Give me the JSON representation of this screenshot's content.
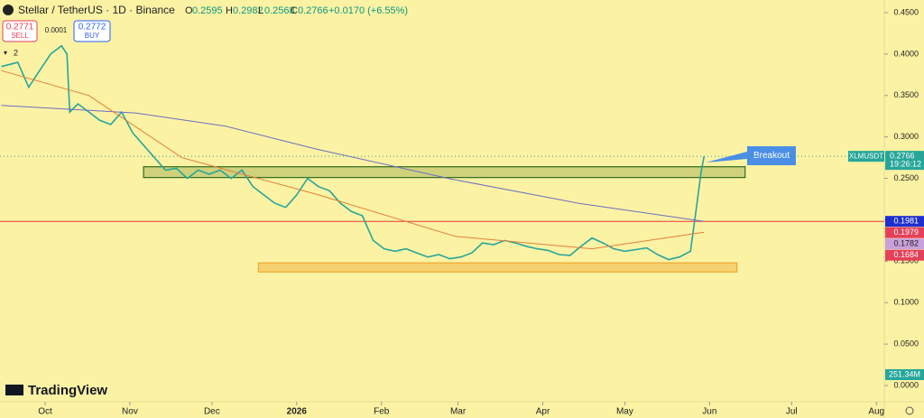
{
  "chart_data": {
    "type": "line",
    "title": "Stellar / TetherUS · 1D · Binance",
    "ohlc": {
      "o_label": "O",
      "o": "0.2595",
      "h_label": "H",
      "h": "0.2982",
      "l_label": "L",
      "l": "0.2568",
      "c_label": "C",
      "c": "0.2766",
      "change": "+0.0170 (+6.55%)"
    },
    "trade": {
      "sell_price": "0.2771",
      "sell": "SELL",
      "spread": "0.0001",
      "buy_price": "0.2772",
      "buy": "BUY"
    },
    "indicators_count": "2",
    "brand": "TradingView",
    "symbol": "XLMUSDT",
    "countdown": "19:26:12",
    "volume_label": "251.34M",
    "annotations": [
      "Breakout"
    ],
    "series": [
      {
        "color": "#26a69a",
        "x": [
          -16,
          -10,
          -6,
          -2,
          2,
          6,
          8,
          9,
          12,
          16,
          20,
          24,
          28,
          32,
          36,
          40,
          44,
          48,
          52,
          56,
          60,
          64,
          68,
          72,
          76,
          80,
          84,
          88,
          92,
          96,
          100,
          104,
          108,
          112,
          116,
          120,
          124,
          128,
          132,
          136,
          140,
          144,
          148,
          152,
          156,
          160,
          164,
          168,
          172,
          176,
          180,
          184,
          188,
          192,
          196,
          200,
          204,
          208,
          212,
          216,
          220,
          224,
          228,
          232,
          236,
          238,
          240,
          241
        ],
        "values": [
          0.385,
          0.39,
          0.36,
          0.38,
          0.4,
          0.41,
          0.4,
          0.33,
          0.34,
          0.33,
          0.32,
          0.315,
          0.33,
          0.305,
          0.29,
          0.275,
          0.26,
          0.262,
          0.25,
          0.26,
          0.255,
          0.26,
          0.25,
          0.26,
          0.24,
          0.23,
          0.22,
          0.215,
          0.23,
          0.25,
          0.24,
          0.235,
          0.22,
          0.21,
          0.205,
          0.175,
          0.165,
          0.162,
          0.165,
          0.16,
          0.155,
          0.158,
          0.153,
          0.155,
          0.16,
          0.172,
          0.17,
          0.175,
          0.172,
          0.168,
          0.165,
          0.163,
          0.158,
          0.157,
          0.168,
          0.178,
          0.172,
          0.165,
          0.162,
          0.164,
          0.166,
          0.158,
          0.152,
          0.155,
          0.162,
          0.21,
          0.26,
          0.2766
        ]
      },
      {
        "color": "#6a6fc0",
        "x": [
          -16,
          33,
          66,
          99,
          148,
          195,
          241
        ],
        "values": [
          0.338,
          0.329,
          0.313,
          0.2855,
          0.2495,
          0.22,
          0.198
        ]
      },
      {
        "color": "#e0813a",
        "x": [
          -16,
          16,
          50,
          100,
          150,
          200,
          241
        ],
        "values": [
          0.38,
          0.35,
          0.275,
          0.23,
          0.18,
          0.165,
          0.185
        ]
      }
    ],
    "zones": [
      {
        "x": [
          36,
          256
        ],
        "y": [
          0.251,
          0.264
        ],
        "color": "#9aa84a"
      },
      {
        "x": [
          78,
          253
        ],
        "y": [
          0.137,
          0.148
        ],
        "color": "#f0a830"
      }
    ],
    "price_tags": [
      {
        "value": 0.1981,
        "color": "#1e2fd0",
        "line_color": "#e53935"
      },
      {
        "value": 0.1979,
        "color": "#e5405a"
      },
      {
        "value": 0.1782,
        "color": "#c9a0dc"
      },
      {
        "value": 0.1684,
        "color": "#e5405a"
      }
    ],
    "xlim": [
      -16.5,
      306.9
    ],
    "xticks": [
      {
        "value": 0,
        "label": "Oct"
      },
      {
        "value": 31,
        "label": "Nov"
      },
      {
        "value": 61,
        "label": "Dec"
      },
      {
        "value": 92,
        "label": "2026"
      },
      {
        "value": 123,
        "label": "Feb"
      },
      {
        "value": 151,
        "label": "Mar"
      },
      {
        "value": 182,
        "label": "Apr"
      },
      {
        "value": 212,
        "label": "May"
      },
      {
        "value": 243,
        "label": "Jun"
      },
      {
        "value": 273,
        "label": "Jul"
      },
      {
        "value": 304,
        "label": "Aug"
      }
    ],
    "ylim": [
      0,
      0.45
    ],
    "yticks": [
      {
        "value": 0,
        "label": "0.0000"
      },
      {
        "value": 0.05,
        "label": "0.0500"
      },
      {
        "value": 0.1,
        "label": "0.1000"
      },
      {
        "value": 0.15,
        "label": "0.1500"
      },
      {
        "value": 0.2,
        "label": "0.2000"
      },
      {
        "value": 0.25,
        "label": "0.2500"
      },
      {
        "value": 0.3,
        "label": "0.3000"
      },
      {
        "value": 0.35,
        "label": "0.3500"
      },
      {
        "value": 0.4,
        "label": "0.4000"
      },
      {
        "value": 0.45,
        "label": "0.4500"
      }
    ]
  }
}
